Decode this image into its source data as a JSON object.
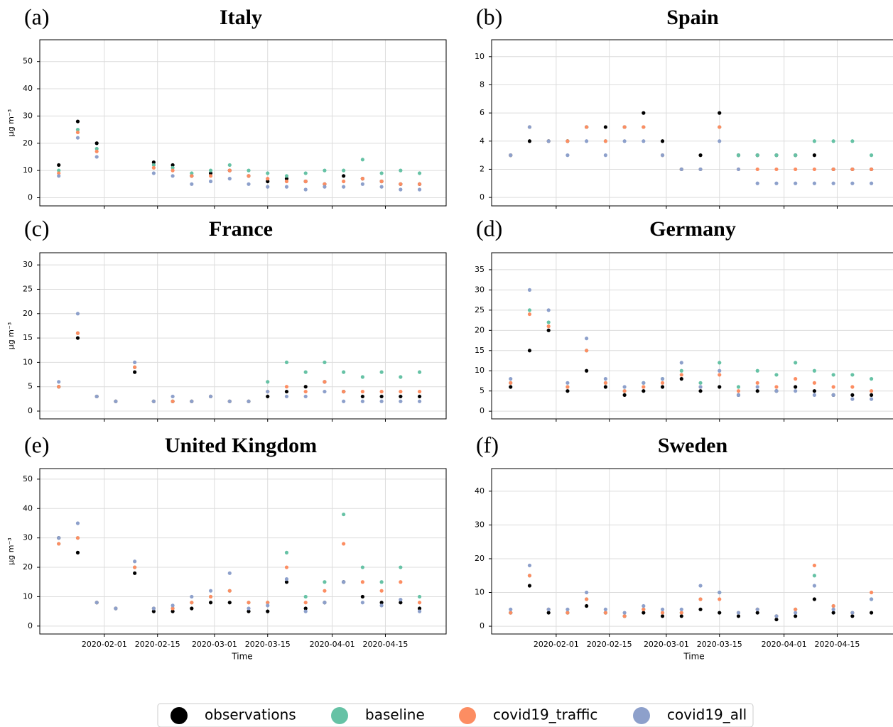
{
  "chart_data": [
    {
      "type": "scatter",
      "panel_label": "(a)",
      "title": "Italy",
      "ylabel": "µg m⁻³",
      "x": [
        "2020-01-20",
        "2020-01-25",
        "2020-01-30",
        "2020-02-04",
        "2020-02-09",
        "2020-02-14",
        "2020-02-19",
        "2020-02-24",
        "2020-02-29",
        "2020-03-05",
        "2020-03-10",
        "2020-03-15",
        "2020-03-20",
        "2020-03-25",
        "2020-03-30",
        "2020-04-04",
        "2020-04-09",
        "2020-04-14",
        "2020-04-19",
        "2020-04-24"
      ],
      "xlim": [
        "2020-01-15",
        "2020-05-01"
      ],
      "xticks": [
        "2020-02-01",
        "2020-02-15",
        "2020-03-01",
        "2020-03-15",
        "2020-04-01",
        "2020-04-15"
      ],
      "ylim": [
        -3,
        58
      ],
      "yticks": [
        0,
        10,
        20,
        30,
        40,
        50
      ],
      "grid": true,
      "series": [
        {
          "name": "observations",
          "color": "#000000",
          "values": [
            12,
            28,
            20,
            null,
            null,
            13,
            12,
            8,
            9,
            10,
            8,
            6,
            7,
            6,
            5,
            8,
            7,
            6,
            5,
            5
          ]
        },
        {
          "name": "baseline",
          "color": "#66c2a5",
          "values": [
            10,
            25,
            18,
            null,
            null,
            12,
            11,
            9,
            10,
            12,
            10,
            9,
            8,
            9,
            10,
            10,
            14,
            9,
            10,
            9
          ]
        },
        {
          "name": "covid19_traffic",
          "color": "#fc8d62",
          "values": [
            9,
            24,
            17,
            null,
            null,
            11,
            10,
            8,
            8,
            10,
            8,
            7,
            6,
            6,
            5,
            6,
            7,
            6,
            5,
            5
          ]
        },
        {
          "name": "covid19_all",
          "color": "#8da0cb",
          "values": [
            8,
            22,
            15,
            null,
            null,
            9,
            8,
            5,
            6,
            7,
            5,
            4,
            4,
            3,
            4,
            4,
            5,
            4,
            3,
            3
          ]
        }
      ]
    },
    {
      "type": "scatter",
      "panel_label": "(b)",
      "title": "Spain",
      "x": [
        "2020-01-20",
        "2020-01-25",
        "2020-01-30",
        "2020-02-04",
        "2020-02-09",
        "2020-02-14",
        "2020-02-19",
        "2020-02-24",
        "2020-02-29",
        "2020-03-05",
        "2020-03-10",
        "2020-03-15",
        "2020-03-20",
        "2020-03-25",
        "2020-03-30",
        "2020-04-04",
        "2020-04-09",
        "2020-04-14",
        "2020-04-19",
        "2020-04-24"
      ],
      "xlim": [
        "2020-01-15",
        "2020-05-01"
      ],
      "xticks": [
        "2020-02-01",
        "2020-02-15",
        "2020-03-01",
        "2020-03-15",
        "2020-04-01",
        "2020-04-15"
      ],
      "ylim": [
        -0.6,
        11.2
      ],
      "yticks": [
        0,
        2,
        4,
        6,
        8,
        10
      ],
      "grid": true,
      "series": [
        {
          "color": "#000000",
          "values": [
            3,
            4,
            4,
            4,
            5,
            5,
            5,
            6,
            4,
            2,
            3,
            6,
            3,
            3,
            3,
            3,
            3,
            2,
            2,
            2
          ]
        },
        {
          "color": "#66c2a5",
          "values": [
            3,
            5,
            4,
            4,
            5,
            4,
            5,
            5,
            3,
            2,
            2,
            5,
            3,
            3,
            3,
            3,
            4,
            4,
            4,
            3
          ]
        },
        {
          "color": "#fc8d62",
          "values": [
            3,
            5,
            4,
            4,
            5,
            4,
            5,
            5,
            3,
            2,
            2,
            5,
            2,
            2,
            2,
            2,
            2,
            2,
            2,
            2
          ]
        },
        {
          "color": "#8da0cb",
          "values": [
            3,
            5,
            4,
            3,
            4,
            3,
            4,
            4,
            3,
            2,
            2,
            4,
            2,
            1,
            1,
            1,
            1,
            1,
            1,
            1
          ]
        }
      ]
    },
    {
      "type": "scatter",
      "panel_label": "(c)",
      "title": "France",
      "ylabel": "µg m⁻³",
      "x": [
        "2020-01-20",
        "2020-01-25",
        "2020-01-30",
        "2020-02-04",
        "2020-02-09",
        "2020-02-14",
        "2020-02-19",
        "2020-02-24",
        "2020-02-29",
        "2020-03-05",
        "2020-03-10",
        "2020-03-15",
        "2020-03-20",
        "2020-03-25",
        "2020-03-30",
        "2020-04-04",
        "2020-04-09",
        "2020-04-14",
        "2020-04-19",
        "2020-04-24"
      ],
      "xlim": [
        "2020-01-15",
        "2020-05-01"
      ],
      "xticks": [
        "2020-02-01",
        "2020-02-15",
        "2020-03-01",
        "2020-03-15",
        "2020-04-01",
        "2020-04-15"
      ],
      "ylim": [
        -1.6,
        32.5
      ],
      "yticks": [
        0,
        5,
        10,
        15,
        20,
        25,
        30
      ],
      "grid": true,
      "series": [
        {
          "color": "#000000",
          "values": [
            5,
            15,
            3,
            2,
            8,
            2,
            2,
            2,
            3,
            2,
            2,
            3,
            4,
            5,
            6,
            4,
            3,
            3,
            3,
            3
          ]
        },
        {
          "color": "#66c2a5",
          "values": [
            5,
            16,
            3,
            2,
            9,
            2,
            2,
            2,
            3,
            2,
            2,
            6,
            10,
            8,
            10,
            8,
            7,
            8,
            7,
            8
          ]
        },
        {
          "color": "#fc8d62",
          "values": [
            5,
            16,
            3,
            2,
            9,
            2,
            2,
            2,
            3,
            2,
            2,
            4,
            5,
            4,
            6,
            4,
            4,
            4,
            4,
            4
          ]
        },
        {
          "color": "#8da0cb",
          "values": [
            6,
            20,
            3,
            2,
            10,
            2,
            3,
            2,
            3,
            2,
            2,
            4,
            3,
            3,
            4,
            2,
            2,
            2,
            2,
            2
          ]
        }
      ]
    },
    {
      "type": "scatter",
      "panel_label": "(d)",
      "title": "Germany",
      "x": [
        "2020-01-20",
        "2020-01-25",
        "2020-01-30",
        "2020-02-04",
        "2020-02-09",
        "2020-02-14",
        "2020-02-19",
        "2020-02-24",
        "2020-02-29",
        "2020-03-05",
        "2020-03-10",
        "2020-03-15",
        "2020-03-20",
        "2020-03-25",
        "2020-03-30",
        "2020-04-04",
        "2020-04-09",
        "2020-04-14",
        "2020-04-19",
        "2020-04-24"
      ],
      "xlim": [
        "2020-01-15",
        "2020-05-01"
      ],
      "xticks": [
        "2020-02-01",
        "2020-02-15",
        "2020-03-01",
        "2020-03-15",
        "2020-04-01",
        "2020-04-15"
      ],
      "ylim": [
        -1.9,
        39.2
      ],
      "yticks": [
        0,
        5,
        10,
        15,
        20,
        25,
        30,
        35
      ],
      "grid": true,
      "series": [
        {
          "color": "#000000",
          "values": [
            6,
            15,
            20,
            5,
            10,
            6,
            4,
            5,
            6,
            8,
            5,
            6,
            4,
            5,
            5,
            6,
            5,
            4,
            4,
            4
          ]
        },
        {
          "color": "#66c2a5",
          "values": [
            7,
            25,
            22,
            6,
            15,
            7,
            5,
            7,
            8,
            10,
            7,
            12,
            6,
            10,
            9,
            12,
            10,
            9,
            9,
            8
          ]
        },
        {
          "color": "#fc8d62",
          "values": [
            7,
            24,
            21,
            6,
            15,
            7,
            5,
            6,
            7,
            9,
            6,
            9,
            5,
            7,
            6,
            8,
            7,
            6,
            6,
            5
          ]
        },
        {
          "color": "#8da0cb",
          "values": [
            8,
            30,
            25,
            7,
            18,
            8,
            6,
            7,
            8,
            12,
            6,
            10,
            4,
            6,
            5,
            5,
            4,
            4,
            3,
            3
          ]
        }
      ]
    },
    {
      "type": "scatter",
      "panel_label": "(e)",
      "title": "United Kingdom",
      "ylabel": "µg m⁻³",
      "xlabel": "Time",
      "x": [
        "2020-01-20",
        "2020-01-25",
        "2020-01-30",
        "2020-02-04",
        "2020-02-09",
        "2020-02-14",
        "2020-02-19",
        "2020-02-24",
        "2020-02-29",
        "2020-03-05",
        "2020-03-10",
        "2020-03-15",
        "2020-03-20",
        "2020-03-25",
        "2020-03-30",
        "2020-04-04",
        "2020-04-09",
        "2020-04-14",
        "2020-04-19",
        "2020-04-24"
      ],
      "xlim": [
        "2020-01-15",
        "2020-05-01"
      ],
      "xticks": [
        "2020-02-01",
        "2020-02-15",
        "2020-03-01",
        "2020-03-15",
        "2020-04-01",
        "2020-04-15"
      ],
      "ylim": [
        -2.7,
        53.6
      ],
      "yticks": [
        0,
        10,
        20,
        30,
        40,
        50
      ],
      "grid": true,
      "series": [
        {
          "color": "#000000",
          "values": [
            30,
            25,
            8,
            6,
            18,
            5,
            5,
            6,
            8,
            8,
            5,
            5,
            15,
            6,
            8,
            15,
            10,
            8,
            8,
            6
          ]
        },
        {
          "color": "#66c2a5",
          "values": [
            28,
            30,
            8,
            6,
            20,
            6,
            6,
            8,
            10,
            12,
            8,
            8,
            25,
            10,
            15,
            38,
            20,
            15,
            20,
            10
          ]
        },
        {
          "color": "#fc8d62",
          "values": [
            28,
            30,
            8,
            6,
            20,
            6,
            6,
            8,
            10,
            12,
            8,
            8,
            20,
            8,
            12,
            28,
            15,
            12,
            15,
            8
          ]
        },
        {
          "color": "#8da0cb",
          "values": [
            30,
            35,
            8,
            6,
            22,
            6,
            7,
            10,
            12,
            18,
            6,
            7,
            16,
            5,
            8,
            15,
            8,
            7,
            9,
            5
          ]
        }
      ]
    },
    {
      "type": "scatter",
      "panel_label": "(f)",
      "title": "Sweden",
      "xlabel": "Time",
      "x": [
        "2020-01-20",
        "2020-01-25",
        "2020-01-30",
        "2020-02-04",
        "2020-02-09",
        "2020-02-14",
        "2020-02-19",
        "2020-02-24",
        "2020-02-29",
        "2020-03-05",
        "2020-03-10",
        "2020-03-15",
        "2020-03-20",
        "2020-03-25",
        "2020-03-30",
        "2020-04-04",
        "2020-04-09",
        "2020-04-14",
        "2020-04-19",
        "2020-04-24"
      ],
      "xlim": [
        "2020-01-15",
        "2020-05-01"
      ],
      "xticks": [
        "2020-02-01",
        "2020-02-15",
        "2020-03-01",
        "2020-03-15",
        "2020-04-01",
        "2020-04-15"
      ],
      "ylim": [
        -2.3,
        46.7
      ],
      "yticks": [
        0,
        10,
        20,
        30,
        40
      ],
      "grid": true,
      "series": [
        {
          "color": "#000000",
          "values": [
            4,
            12,
            4,
            4,
            6,
            4,
            3,
            4,
            3,
            3,
            5,
            4,
            3,
            4,
            2,
            3,
            8,
            4,
            3,
            4
          ]
        },
        {
          "color": "#66c2a5",
          "values": [
            4,
            15,
            5,
            4,
            8,
            4,
            3,
            5,
            4,
            4,
            8,
            10,
            4,
            5,
            3,
            5,
            15,
            6,
            4,
            8
          ]
        },
        {
          "color": "#fc8d62",
          "values": [
            4,
            15,
            5,
            4,
            8,
            4,
            3,
            5,
            4,
            4,
            8,
            8,
            4,
            5,
            3,
            5,
            18,
            6,
            4,
            10
          ]
        },
        {
          "color": "#8da0cb",
          "values": [
            5,
            18,
            5,
            5,
            10,
            5,
            4,
            6,
            5,
            5,
            12,
            10,
            4,
            5,
            3,
            4,
            12,
            5,
            4,
            8
          ]
        }
      ]
    }
  ]
}
